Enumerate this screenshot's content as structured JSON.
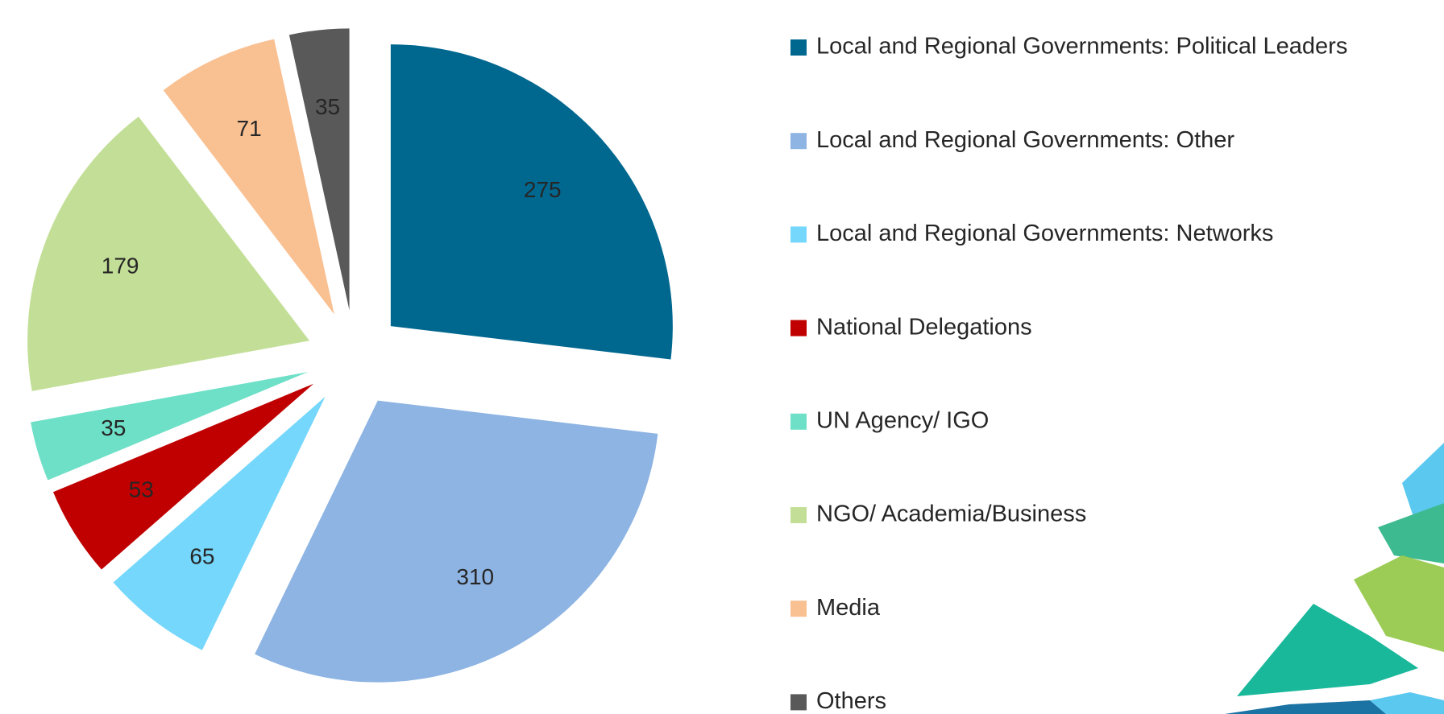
{
  "chart_data": {
    "type": "pie",
    "categories": [
      "Local and Regional Governments: Political Leaders",
      "Local and Regional Governments: Other",
      "Local and Regional Governments: Networks",
      "National Delegations",
      "UN Agency/ IGO",
      "NGO/ Academia/Business",
      "Media",
      "Others"
    ],
    "values": [
      275,
      310,
      65,
      53,
      35,
      179,
      71,
      35
    ],
    "colors": [
      "#00678f",
      "#8eb4e3",
      "#75d7fb",
      "#c00000",
      "#6ee0c8",
      "#c3df97",
      "#f9c092",
      "#595959"
    ],
    "legend": "right"
  }
}
